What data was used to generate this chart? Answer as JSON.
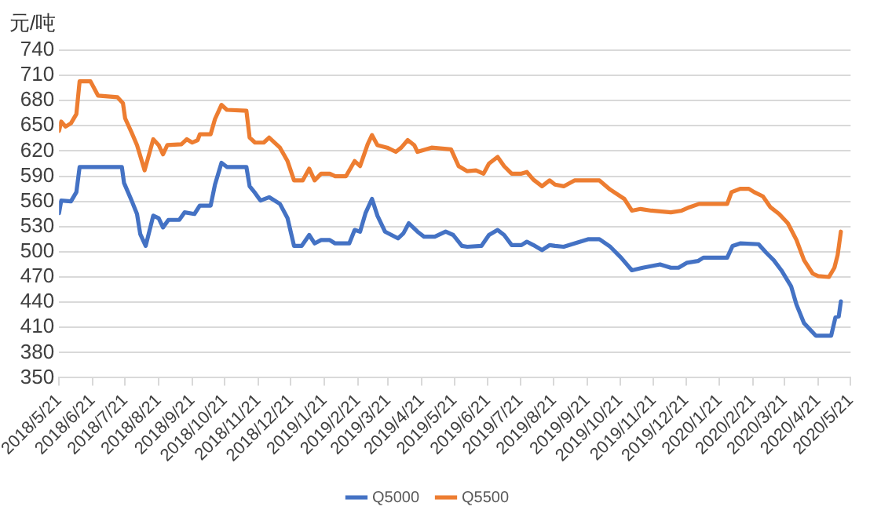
{
  "chart_data": {
    "type": "line",
    "ylabel": "元/吨",
    "xlim": [
      "2018-05-21",
      "2020-05-21"
    ],
    "xticks": [
      {
        "value": "2018-05-21",
        "label": "2018/5/21"
      },
      {
        "value": "2018-06-21",
        "label": "2018/6/21"
      },
      {
        "value": "2018-07-21",
        "label": "2018/7/21"
      },
      {
        "value": "2018-08-21",
        "label": "2018/8/21"
      },
      {
        "value": "2018-09-21",
        "label": "2018/9/21"
      },
      {
        "value": "2018-10-21",
        "label": "2018/10/21"
      },
      {
        "value": "2018-11-21",
        "label": "2018/11/21"
      },
      {
        "value": "2018-12-21",
        "label": "2018/12/21"
      },
      {
        "value": "2019-01-21",
        "label": "2019/1/21"
      },
      {
        "value": "2019-02-21",
        "label": "2019/2/21"
      },
      {
        "value": "2019-03-21",
        "label": "2019/3/21"
      },
      {
        "value": "2019-04-21",
        "label": "2019/4/21"
      },
      {
        "value": "2019-05-21",
        "label": "2019/5/21"
      },
      {
        "value": "2019-06-21",
        "label": "2019/6/21"
      },
      {
        "value": "2019-07-21",
        "label": "2019/7/21"
      },
      {
        "value": "2019-08-21",
        "label": "2019/8/21"
      },
      {
        "value": "2019-09-21",
        "label": "2019/9/21"
      },
      {
        "value": "2019-10-21",
        "label": "2019/10/21"
      },
      {
        "value": "2019-11-21",
        "label": "2019/11/21"
      },
      {
        "value": "2019-12-21",
        "label": "2019/12/21"
      },
      {
        "value": "2020-01-21",
        "label": "2020/1/21"
      },
      {
        "value": "2020-02-21",
        "label": "2020/2/21"
      },
      {
        "value": "2020-03-21",
        "label": "2020/3/21"
      },
      {
        "value": "2020-04-21",
        "label": "2020/4/21"
      },
      {
        "value": "2020-05-21",
        "label": "2020/5/21"
      }
    ],
    "ylim": [
      350,
      740
    ],
    "yticks": [
      350,
      380,
      410,
      440,
      470,
      500,
      530,
      560,
      590,
      620,
      650,
      680,
      710,
      740
    ],
    "grid": "y",
    "legend": "bottom",
    "series": [
      {
        "name": "Q5000",
        "color": "#4472c4",
        "x": [
          "2018-05-21",
          "2018-05-23",
          "2018-06-01",
          "2018-06-06",
          "2018-06-09",
          "2018-07-18",
          "2018-07-20",
          "2018-07-27",
          "2018-08-01",
          "2018-08-04",
          "2018-08-09",
          "2018-08-16",
          "2018-08-21",
          "2018-08-25",
          "2018-08-30",
          "2018-09-09",
          "2018-09-14",
          "2018-09-23",
          "2018-09-28",
          "2018-10-08",
          "2018-10-12",
          "2018-10-18",
          "2018-10-23",
          "2018-11-10",
          "2018-11-13",
          "2018-11-18",
          "2018-11-23",
          "2018-12-01",
          "2018-12-11",
          "2018-12-18",
          "2018-12-24",
          "2018-12-31",
          "2019-01-07",
          "2019-01-12",
          "2019-01-18",
          "2019-01-26",
          "2019-01-31",
          "2019-02-13",
          "2019-02-18",
          "2019-02-23",
          "2019-02-28",
          "2019-03-06",
          "2019-03-11",
          "2019-03-18",
          "2019-03-30",
          "2019-04-04",
          "2019-04-09",
          "2019-04-17",
          "2019-04-23",
          "2019-05-03",
          "2019-05-13",
          "2019-05-20",
          "2019-05-28",
          "2019-06-02",
          "2019-06-15",
          "2019-06-22",
          "2019-06-30",
          "2019-07-06",
          "2019-07-13",
          "2019-07-22",
          "2019-07-27",
          "2019-08-02",
          "2019-08-10",
          "2019-08-17",
          "2019-08-22",
          "2019-08-30",
          "2019-09-09",
          "2019-09-22",
          "2019-10-02",
          "2019-10-12",
          "2019-10-22",
          "2019-11-01",
          "2019-11-11",
          "2019-11-27",
          "2019-12-07",
          "2019-12-14",
          "2019-12-22",
          "2020-01-01",
          "2020-01-06",
          "2020-01-28",
          "2020-02-02",
          "2020-02-09",
          "2020-02-26",
          "2020-03-04",
          "2020-03-11",
          "2020-03-18",
          "2020-03-27",
          "2020-04-01",
          "2020-04-08",
          "2020-04-19",
          "2020-05-03",
          "2020-05-07",
          "2020-05-10",
          "2020-05-12"
        ],
        "values": [
          546,
          561,
          560,
          571,
          601,
          601,
          582,
          561,
          545,
          521,
          507,
          543,
          540,
          529,
          538,
          538,
          547,
          545,
          555,
          555,
          580,
          606,
          601,
          601,
          578,
          570,
          561,
          565,
          557,
          540,
          507,
          507,
          520,
          510,
          514,
          514,
          510,
          510,
          526,
          524,
          546,
          563,
          543,
          524,
          516,
          522,
          534,
          524,
          518,
          518,
          524,
          520,
          507,
          506,
          507,
          520,
          526,
          520,
          508,
          508,
          512,
          508,
          502,
          508,
          507,
          506,
          510,
          515,
          515,
          506,
          493,
          478,
          481,
          485,
          481,
          481,
          487,
          489,
          493,
          493,
          507,
          510,
          509,
          499,
          490,
          478,
          459,
          437,
          415,
          400,
          400,
          422,
          423,
          441
        ]
      },
      {
        "name": "Q5500",
        "color": "#ed7d31",
        "x": [
          "2018-05-21",
          "2018-05-23",
          "2018-05-27",
          "2018-06-01",
          "2018-06-06",
          "2018-06-09",
          "2018-06-19",
          "2018-06-26",
          "2018-07-14",
          "2018-07-19",
          "2018-07-21",
          "2018-07-27",
          "2018-08-01",
          "2018-08-08",
          "2018-08-16",
          "2018-08-21",
          "2018-08-25",
          "2018-08-29",
          "2018-09-11",
          "2018-09-16",
          "2018-09-21",
          "2018-09-26",
          "2018-09-28",
          "2018-10-08",
          "2018-10-12",
          "2018-10-18",
          "2018-10-23",
          "2018-11-10",
          "2018-11-13",
          "2018-11-18",
          "2018-11-26",
          "2018-12-01",
          "2018-12-11",
          "2018-12-18",
          "2018-12-24",
          "2019-01-01",
          "2019-01-07",
          "2019-01-12",
          "2019-01-18",
          "2019-01-26",
          "2019-01-31",
          "2019-02-10",
          "2019-02-18",
          "2019-02-23",
          "2019-03-02",
          "2019-03-06",
          "2019-03-11",
          "2019-03-20",
          "2019-03-28",
          "2019-04-02",
          "2019-04-08",
          "2019-04-14",
          "2019-04-17",
          "2019-04-30",
          "2019-05-18",
          "2019-05-25",
          "2019-06-02",
          "2019-06-10",
          "2019-06-17",
          "2019-06-22",
          "2019-06-30",
          "2019-07-06",
          "2019-07-13",
          "2019-07-22",
          "2019-07-27",
          "2019-08-02",
          "2019-08-10",
          "2019-08-17",
          "2019-08-22",
          "2019-08-30",
          "2019-09-09",
          "2019-10-02",
          "2019-10-12",
          "2019-10-25",
          "2019-11-01",
          "2019-11-09",
          "2019-11-19",
          "2019-12-07",
          "2019-12-17",
          "2019-12-24",
          "2020-01-02",
          "2020-01-11",
          "2020-01-28",
          "2020-02-01",
          "2020-02-09",
          "2020-02-17",
          "2020-02-22",
          "2020-03-01",
          "2020-03-08",
          "2020-03-16",
          "2020-03-24",
          "2020-04-01",
          "2020-04-08",
          "2020-04-16",
          "2020-04-21",
          "2020-05-01",
          "2020-05-06",
          "2020-05-09",
          "2020-05-12"
        ],
        "values": [
          644,
          655,
          649,
          653,
          664,
          703,
          703,
          686,
          684,
          677,
          659,
          642,
          627,
          597,
          634,
          627,
          616,
          627,
          628,
          634,
          630,
          633,
          640,
          640,
          658,
          675,
          669,
          668,
          636,
          630,
          630,
          636,
          624,
          608,
          585,
          585,
          599,
          585,
          593,
          593,
          590,
          590,
          608,
          602,
          628,
          639,
          627,
          624,
          619,
          624,
          633,
          627,
          619,
          624,
          622,
          602,
          596,
          597,
          593,
          605,
          613,
          602,
          593,
          593,
          595,
          586,
          578,
          585,
          580,
          578,
          585,
          585,
          574,
          563,
          549,
          551,
          549,
          547,
          549,
          553,
          557,
          557,
          557,
          571,
          575,
          575,
          571,
          566,
          553,
          545,
          534,
          514,
          490,
          474,
          471,
          470,
          481,
          496,
          524
        ]
      }
    ]
  }
}
